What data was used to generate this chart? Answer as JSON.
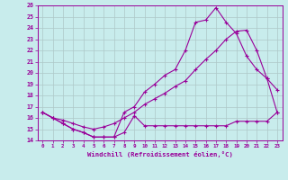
{
  "xlabel": "Windchill (Refroidissement éolien,°C)",
  "bg_color": "#c8ecec",
  "grid_color": "#adc8c8",
  "line_color": "#990099",
  "xlim": [
    0,
    23
  ],
  "ylim": [
    14,
    26
  ],
  "yticks": [
    14,
    15,
    16,
    17,
    18,
    19,
    20,
    21,
    22,
    23,
    24,
    25,
    26
  ],
  "xticks": [
    0,
    1,
    2,
    3,
    4,
    5,
    6,
    7,
    8,
    9,
    10,
    11,
    12,
    13,
    14,
    15,
    16,
    17,
    18,
    19,
    20,
    21,
    22,
    23
  ],
  "line1_x": [
    0,
    1,
    2,
    3,
    4,
    5,
    6,
    7,
    8,
    9,
    10,
    11,
    12,
    13,
    14,
    15,
    16,
    17,
    18,
    19,
    20,
    21,
    22,
    23
  ],
  "line1_y": [
    16.5,
    16.0,
    15.5,
    15.0,
    14.7,
    14.3,
    14.3,
    14.3,
    14.7,
    16.2,
    15.3,
    15.3,
    15.3,
    15.3,
    15.3,
    15.3,
    15.3,
    15.3,
    15.3,
    15.7,
    15.7,
    15.7,
    15.7,
    16.5
  ],
  "line2_x": [
    0,
    1,
    2,
    3,
    4,
    5,
    6,
    7,
    8,
    9,
    10,
    11,
    12,
    13,
    14,
    15,
    16,
    17,
    18,
    19,
    20,
    21,
    22,
    23
  ],
  "line2_y": [
    16.5,
    16.0,
    15.5,
    15.0,
    14.7,
    14.3,
    14.3,
    14.3,
    16.5,
    17.0,
    18.3,
    19.0,
    19.8,
    20.3,
    22.0,
    24.5,
    24.7,
    25.8,
    24.5,
    23.5,
    21.5,
    20.3,
    19.5,
    18.5
  ],
  "line3_x": [
    0,
    1,
    2,
    3,
    4,
    5,
    6,
    7,
    8,
    9,
    10,
    11,
    12,
    13,
    14,
    15,
    16,
    17,
    18,
    19,
    20,
    21,
    22,
    23
  ],
  "line3_y": [
    16.5,
    16.0,
    15.8,
    15.5,
    15.2,
    15.0,
    15.2,
    15.5,
    16.0,
    16.5,
    17.2,
    17.7,
    18.2,
    18.8,
    19.3,
    20.3,
    21.2,
    22.0,
    23.0,
    23.7,
    23.8,
    22.0,
    19.5,
    16.5
  ]
}
